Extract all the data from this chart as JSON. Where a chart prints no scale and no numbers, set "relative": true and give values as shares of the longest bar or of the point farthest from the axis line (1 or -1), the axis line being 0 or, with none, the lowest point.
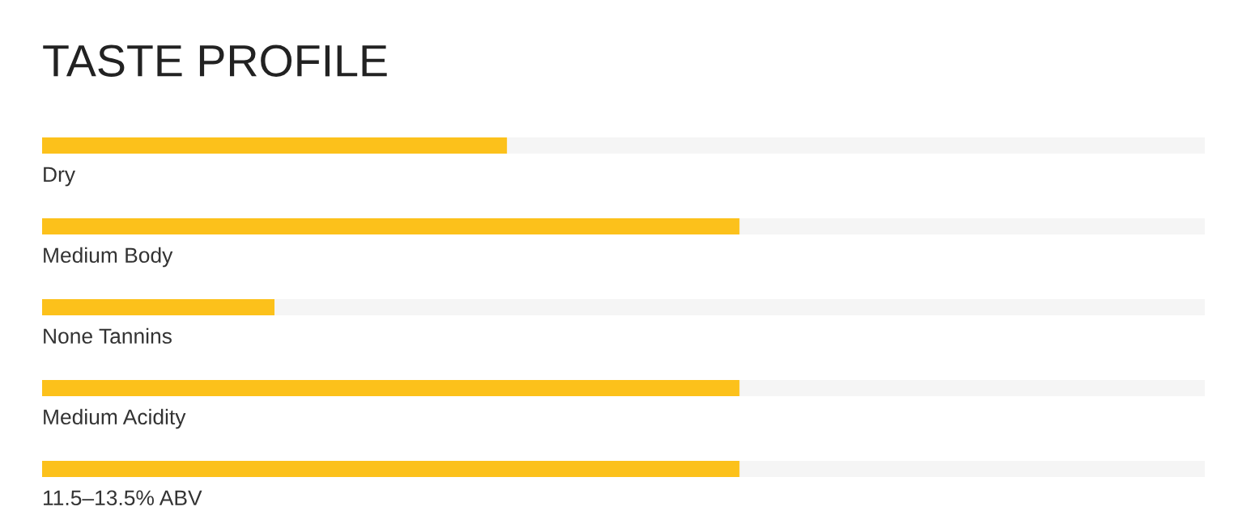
{
  "chart_data": {
    "type": "bar",
    "title": "TASTE PROFILE",
    "orientation": "horizontal",
    "stacked": true,
    "relative": true,
    "legend": false,
    "categories": [
      "Dry",
      "Medium Body",
      "None Tannins",
      "Medium Acidity",
      "11.5–13.5% ABV"
    ],
    "series": [
      {
        "color": "#fcc11b",
        "values": [
          0.4,
          0.6,
          0.2,
          0.6,
          0.6
        ]
      },
      {
        "color": "#f5f5f5",
        "values": [
          0.6,
          0.4,
          0.8,
          0.4,
          0.4
        ]
      }
    ]
  }
}
